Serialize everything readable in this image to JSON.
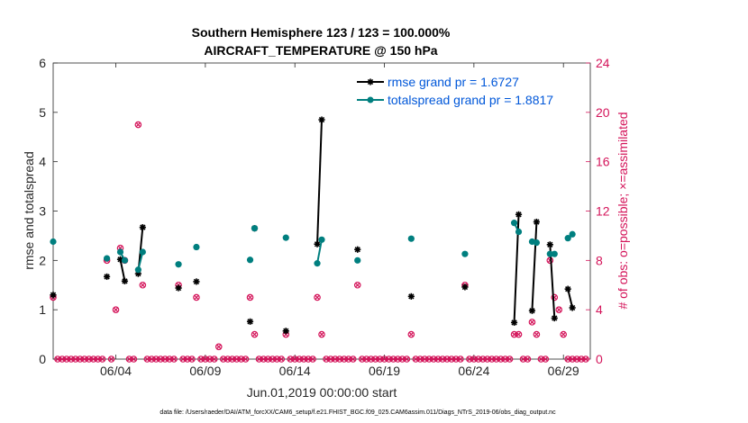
{
  "chart_data": {
    "type": "line",
    "title_line1": "Southern Hemisphere 123 / 123 = 100.000%",
    "title_line2": "AIRCRAFT_TEMPERATURE @ 150 hPa",
    "xlabel": "Jun.01,2019 00:00:00 start",
    "ylabel": "rmse and totalspread",
    "ylabel_right": "# of obs: o=possible; ×=assimilated",
    "footer": "data file: /Users/raeder/DAI/ATM_forcXX/CAM6_setup/f.e21.FHIST_BGC.f09_025.CAM6assim.011/Diags_NTrS_2019-06/obs_diag_output.nc",
    "xlim": [
      0.5,
      30.5
    ],
    "ylim": [
      0,
      6
    ],
    "ylim_right": [
      0,
      24
    ],
    "x_ticks": [
      4,
      9,
      14,
      19,
      24,
      29
    ],
    "x_tick_labels": [
      "06/04",
      "06/09",
      "06/14",
      "06/19",
      "06/24",
      "06/29"
    ],
    "y_ticks": [
      0,
      1,
      2,
      3,
      4,
      5,
      6
    ],
    "y_tick_labels": [
      "0",
      "1",
      "2",
      "3",
      "4",
      "5",
      "6"
    ],
    "y_right_ticks": [
      0,
      4,
      8,
      12,
      16,
      20,
      24
    ],
    "y_right_tick_labels": [
      "0",
      "4",
      "8",
      "12",
      "16",
      "20",
      "24"
    ],
    "legend_position": "top-right",
    "colors": {
      "rmse": "#000000",
      "totalspread": "#007f7f",
      "obs": "#d4145a",
      "legend_text": "#0057d9"
    },
    "series": [
      {
        "name": "rmse grand pr = 1.6727",
        "type": "line",
        "segments": [
          [
            [
              0.5,
              1.3
            ]
          ],
          [
            [
              3.5,
              1.67
            ]
          ],
          [
            [
              4.25,
              2.02
            ],
            [
              4.5,
              1.58
            ]
          ],
          [
            [
              5.25,
              1.73
            ],
            [
              5.5,
              2.67
            ]
          ],
          [
            [
              7.5,
              1.44
            ]
          ],
          [
            [
              8.5,
              1.57
            ]
          ],
          [
            [
              11.5,
              0.76
            ]
          ],
          [
            [
              11.75,
              2.65
            ]
          ],
          [
            [
              13.5,
              0.57
            ]
          ],
          [
            [
              15.25,
              2.33
            ],
            [
              15.5,
              4.85
            ]
          ],
          [
            [
              17.5,
              2.22
            ]
          ],
          [
            [
              20.5,
              1.27
            ]
          ],
          [
            [
              23.5,
              1.46
            ]
          ],
          [
            [
              26.25,
              0.74
            ],
            [
              26.5,
              2.93
            ]
          ],
          [
            [
              27.25,
              0.98
            ],
            [
              27.5,
              2.78
            ]
          ],
          [
            [
              28.25,
              2.32
            ],
            [
              28.5,
              0.83
            ]
          ],
          [
            [
              29.25,
              1.42
            ],
            [
              29.5,
              1.04
            ]
          ]
        ]
      },
      {
        "name": "totalspread grand pr = 1.8817",
        "type": "line",
        "segments": [
          [
            [
              0.5,
              2.38
            ]
          ],
          [
            [
              3.5,
              2.04
            ]
          ],
          [
            [
              4.25,
              2.17
            ],
            [
              4.5,
              2.0
            ]
          ],
          [
            [
              5.25,
              1.81
            ],
            [
              5.5,
              2.17
            ]
          ],
          [
            [
              7.5,
              1.92
            ]
          ],
          [
            [
              8.5,
              2.27
            ]
          ],
          [
            [
              11.5,
              2.01
            ]
          ],
          [
            [
              11.75,
              2.65
            ]
          ],
          [
            [
              13.5,
              2.46
            ]
          ],
          [
            [
              15.25,
              1.94
            ],
            [
              15.5,
              2.42
            ]
          ],
          [
            [
              17.5,
              2.0
            ]
          ],
          [
            [
              20.5,
              2.44
            ]
          ],
          [
            [
              23.5,
              2.13
            ]
          ],
          [
            [
              26.25,
              2.76
            ],
            [
              26.5,
              2.58
            ]
          ],
          [
            [
              27.25,
              2.38
            ],
            [
              27.5,
              2.36
            ]
          ],
          [
            [
              28.25,
              2.13
            ],
            [
              28.5,
              2.13
            ]
          ],
          [
            [
              29.25,
              2.45
            ],
            [
              29.5,
              2.53
            ]
          ]
        ]
      }
    ],
    "obs_counts": [
      {
        "x": 0.5,
        "y": 5
      },
      {
        "x": 0.75,
        "y": 0
      },
      {
        "x": 1.0,
        "y": 0
      },
      {
        "x": 1.25,
        "y": 0
      },
      {
        "x": 1.5,
        "y": 0
      },
      {
        "x": 1.75,
        "y": 0
      },
      {
        "x": 2.0,
        "y": 0
      },
      {
        "x": 2.25,
        "y": 0
      },
      {
        "x": 2.5,
        "y": 0
      },
      {
        "x": 2.75,
        "y": 0
      },
      {
        "x": 3.0,
        "y": 0
      },
      {
        "x": 3.25,
        "y": 0
      },
      {
        "x": 3.5,
        "y": 8
      },
      {
        "x": 3.75,
        "y": 0
      },
      {
        "x": 4.0,
        "y": 4
      },
      {
        "x": 4.25,
        "y": 9
      },
      {
        "x": 4.5,
        "y": 8
      },
      {
        "x": 4.75,
        "y": 0
      },
      {
        "x": 5.0,
        "y": 0
      },
      {
        "x": 5.25,
        "y": 19
      },
      {
        "x": 5.5,
        "y": 6
      },
      {
        "x": 5.75,
        "y": 0
      },
      {
        "x": 6.0,
        "y": 0
      },
      {
        "x": 6.25,
        "y": 0
      },
      {
        "x": 6.5,
        "y": 0
      },
      {
        "x": 6.75,
        "y": 0
      },
      {
        "x": 7.0,
        "y": 0
      },
      {
        "x": 7.25,
        "y": 0
      },
      {
        "x": 7.5,
        "y": 6
      },
      {
        "x": 7.75,
        "y": 0
      },
      {
        "x": 8.0,
        "y": 0
      },
      {
        "x": 8.25,
        "y": 0
      },
      {
        "x": 8.5,
        "y": 5
      },
      {
        "x": 8.75,
        "y": 0
      },
      {
        "x": 9.0,
        "y": 0
      },
      {
        "x": 9.25,
        "y": 0
      },
      {
        "x": 9.5,
        "y": 0
      },
      {
        "x": 9.75,
        "y": 1
      },
      {
        "x": 10.0,
        "y": 0
      },
      {
        "x": 10.25,
        "y": 0
      },
      {
        "x": 10.5,
        "y": 0
      },
      {
        "x": 10.75,
        "y": 0
      },
      {
        "x": 11.0,
        "y": 0
      },
      {
        "x": 11.25,
        "y": 0
      },
      {
        "x": 11.5,
        "y": 5
      },
      {
        "x": 11.75,
        "y": 2
      },
      {
        "x": 12.0,
        "y": 0
      },
      {
        "x": 12.25,
        "y": 0
      },
      {
        "x": 12.5,
        "y": 0
      },
      {
        "x": 12.75,
        "y": 0
      },
      {
        "x": 13.0,
        "y": 0
      },
      {
        "x": 13.25,
        "y": 0
      },
      {
        "x": 13.5,
        "y": 2
      },
      {
        "x": 13.75,
        "y": 0
      },
      {
        "x": 14.0,
        "y": 0
      },
      {
        "x": 14.25,
        "y": 0
      },
      {
        "x": 14.5,
        "y": 0
      },
      {
        "x": 14.75,
        "y": 0
      },
      {
        "x": 15.0,
        "y": 0
      },
      {
        "x": 15.25,
        "y": 5
      },
      {
        "x": 15.5,
        "y": 2
      },
      {
        "x": 15.75,
        "y": 0
      },
      {
        "x": 16.0,
        "y": 0
      },
      {
        "x": 16.25,
        "y": 0
      },
      {
        "x": 16.5,
        "y": 0
      },
      {
        "x": 16.75,
        "y": 0
      },
      {
        "x": 17.0,
        "y": 0
      },
      {
        "x": 17.25,
        "y": 0
      },
      {
        "x": 17.5,
        "y": 6
      },
      {
        "x": 17.75,
        "y": 0
      },
      {
        "x": 18.0,
        "y": 0
      },
      {
        "x": 18.25,
        "y": 0
      },
      {
        "x": 18.5,
        "y": 0
      },
      {
        "x": 18.75,
        "y": 0
      },
      {
        "x": 19.0,
        "y": 0
      },
      {
        "x": 19.25,
        "y": 0
      },
      {
        "x": 19.5,
        "y": 0
      },
      {
        "x": 19.75,
        "y": 0
      },
      {
        "x": 20.0,
        "y": 0
      },
      {
        "x": 20.25,
        "y": 0
      },
      {
        "x": 20.5,
        "y": 2
      },
      {
        "x": 20.75,
        "y": 0
      },
      {
        "x": 21.0,
        "y": 0
      },
      {
        "x": 21.25,
        "y": 0
      },
      {
        "x": 21.5,
        "y": 0
      },
      {
        "x": 21.75,
        "y": 0
      },
      {
        "x": 22.0,
        "y": 0
      },
      {
        "x": 22.25,
        "y": 0
      },
      {
        "x": 22.5,
        "y": 0
      },
      {
        "x": 22.75,
        "y": 0
      },
      {
        "x": 23.0,
        "y": 0
      },
      {
        "x": 23.25,
        "y": 0
      },
      {
        "x": 23.5,
        "y": 6
      },
      {
        "x": 23.75,
        "y": 0
      },
      {
        "x": 24.0,
        "y": 0
      },
      {
        "x": 24.25,
        "y": 0
      },
      {
        "x": 24.5,
        "y": 0
      },
      {
        "x": 24.75,
        "y": 0
      },
      {
        "x": 25.0,
        "y": 0
      },
      {
        "x": 25.25,
        "y": 0
      },
      {
        "x": 25.5,
        "y": 0
      },
      {
        "x": 25.75,
        "y": 0
      },
      {
        "x": 26.0,
        "y": 0
      },
      {
        "x": 26.25,
        "y": 2
      },
      {
        "x": 26.5,
        "y": 2
      },
      {
        "x": 26.75,
        "y": 0
      },
      {
        "x": 27.0,
        "y": 0
      },
      {
        "x": 27.25,
        "y": 3
      },
      {
        "x": 27.5,
        "y": 2
      },
      {
        "x": 27.75,
        "y": 0
      },
      {
        "x": 28.0,
        "y": 0
      },
      {
        "x": 28.25,
        "y": 8
      },
      {
        "x": 28.5,
        "y": 5
      },
      {
        "x": 28.75,
        "y": 4
      },
      {
        "x": 29.0,
        "y": 2
      },
      {
        "x": 29.25,
        "y": 0
      },
      {
        "x": 29.5,
        "y": 0
      },
      {
        "x": 29.75,
        "y": 0
      },
      {
        "x": 30.0,
        "y": 0
      },
      {
        "x": 30.25,
        "y": 0
      }
    ]
  }
}
